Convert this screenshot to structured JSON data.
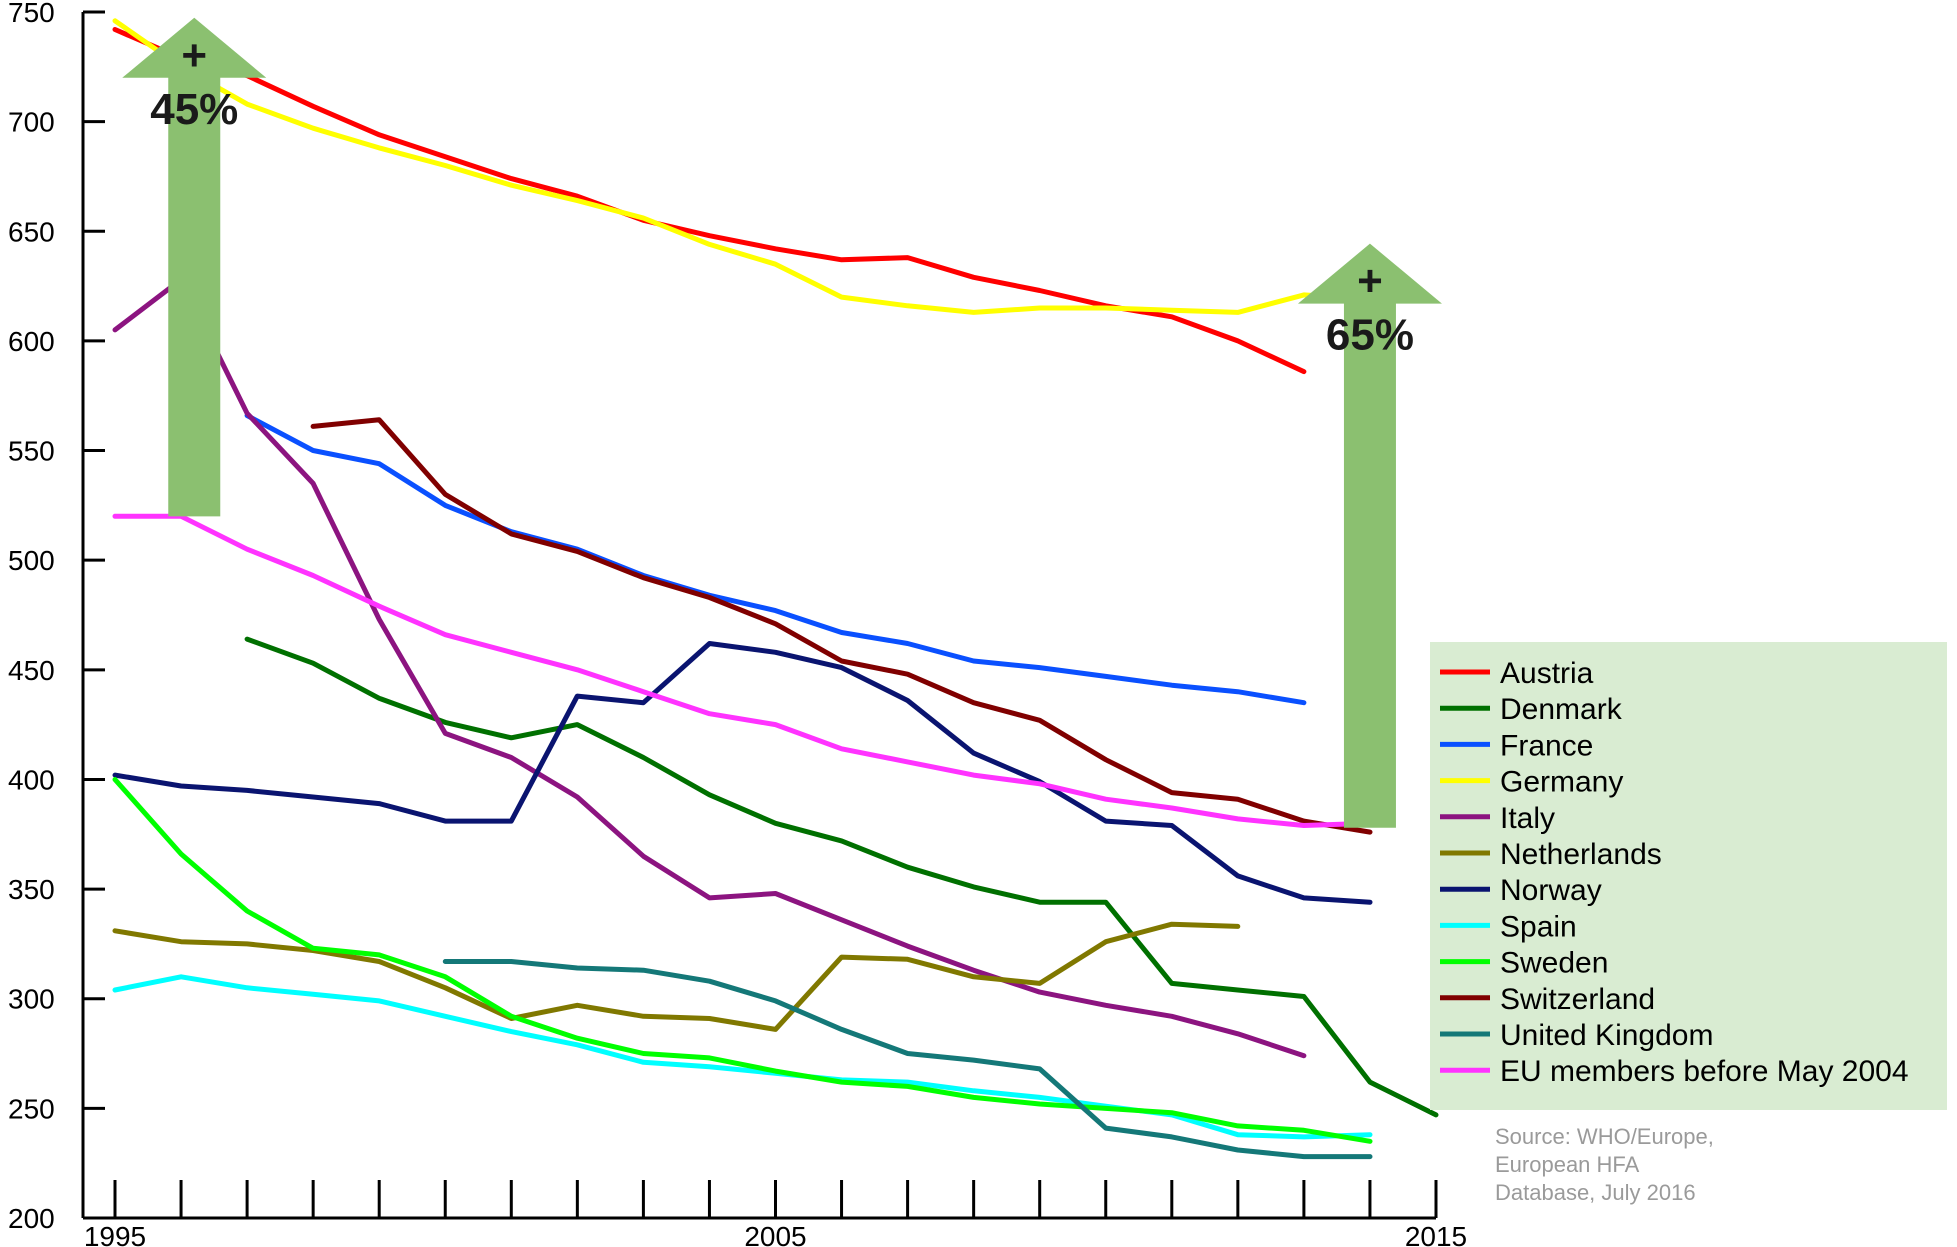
{
  "chart_data": {
    "type": "line",
    "title": "",
    "xlabel": "",
    "ylabel": "",
    "xlim": [
      1995,
      2015
    ],
    "ylim": [
      200,
      750
    ],
    "x_ticks": [
      "1995",
      "2005",
      "2015"
    ],
    "y_ticks": [
      "200",
      "250",
      "300",
      "350",
      "400",
      "450",
      "500",
      "550",
      "600",
      "650",
      "700",
      "750"
    ],
    "grid": false,
    "legend_position": "right",
    "series": [
      {
        "name": "Austria",
        "color": "#ff0000",
        "points": [
          [
            1995,
            742
          ],
          [
            1996,
            729
          ],
          [
            1997,
            721
          ],
          [
            1998,
            707
          ],
          [
            1999,
            694
          ],
          [
            2000,
            684
          ],
          [
            2001,
            674
          ],
          [
            2002,
            666
          ],
          [
            2003,
            655
          ],
          [
            2004,
            648
          ],
          [
            2005,
            642
          ],
          [
            2006,
            637
          ],
          [
            2007,
            638
          ],
          [
            2008,
            629
          ],
          [
            2009,
            623
          ],
          [
            2010,
            616
          ],
          [
            2011,
            611
          ],
          [
            2012,
            600
          ],
          [
            2013,
            586
          ]
        ]
      },
      {
        "name": "Denmark",
        "color": "#007000",
        "points": [
          [
            1997,
            464
          ],
          [
            1998,
            453
          ],
          [
            1999,
            437
          ],
          [
            2000,
            426
          ],
          [
            2001,
            419
          ],
          [
            2002,
            425
          ],
          [
            2003,
            410
          ],
          [
            2004,
            393
          ],
          [
            2005,
            380
          ],
          [
            2006,
            372
          ],
          [
            2007,
            360
          ],
          [
            2008,
            351
          ],
          [
            2009,
            344
          ],
          [
            2010,
            344
          ],
          [
            2011,
            307
          ],
          [
            2012,
            304
          ],
          [
            2013,
            301
          ],
          [
            2014,
            262
          ],
          [
            2015,
            247
          ]
        ]
      },
      {
        "name": "France",
        "color": "#0a50ff",
        "points": [
          [
            1997,
            566
          ],
          [
            1998,
            550
          ],
          [
            1999,
            544
          ],
          [
            2000,
            525
          ],
          [
            2001,
            513
          ],
          [
            2002,
            505
          ],
          [
            2003,
            493
          ],
          [
            2004,
            484
          ],
          [
            2005,
            477
          ],
          [
            2006,
            467
          ],
          [
            2007,
            462
          ],
          [
            2008,
            454
          ],
          [
            2009,
            451
          ],
          [
            2010,
            447
          ],
          [
            2011,
            443
          ],
          [
            2012,
            440
          ],
          [
            2013,
            435
          ]
        ]
      },
      {
        "name": "Germany",
        "color": "#ffff00",
        "points": [
          [
            1995,
            746
          ],
          [
            1996,
            725
          ],
          [
            1997,
            708
          ],
          [
            1998,
            697
          ],
          [
            1999,
            688
          ],
          [
            2000,
            680
          ],
          [
            2001,
            671
          ],
          [
            2002,
            664
          ],
          [
            2003,
            656
          ],
          [
            2004,
            644
          ],
          [
            2005,
            635
          ],
          [
            2006,
            620
          ],
          [
            2007,
            616
          ],
          [
            2008,
            613
          ],
          [
            2009,
            615
          ],
          [
            2010,
            615
          ],
          [
            2011,
            614
          ],
          [
            2012,
            613
          ],
          [
            2013,
            621
          ],
          [
            2014,
            619
          ]
        ]
      },
      {
        "name": "Italy",
        "color": "#8c1480",
        "points": [
          [
            1995,
            605
          ],
          [
            1996,
            628
          ],
          [
            1997,
            567
          ],
          [
            1998,
            535
          ],
          [
            1999,
            473
          ],
          [
            2000,
            421
          ],
          [
            2001,
            410
          ],
          [
            2002,
            392
          ],
          [
            2003,
            365
          ],
          [
            2004,
            346
          ],
          [
            2005,
            348
          ],
          [
            2006,
            336
          ],
          [
            2007,
            324
          ],
          [
            2008,
            313
          ],
          [
            2009,
            303
          ],
          [
            2010,
            297
          ],
          [
            2011,
            292
          ],
          [
            2012,
            284
          ],
          [
            2013,
            274
          ]
        ]
      },
      {
        "name": "Netherlands",
        "color": "#807800",
        "points": [
          [
            1995,
            331
          ],
          [
            1996,
            326
          ],
          [
            1997,
            325
          ],
          [
            1998,
            322
          ],
          [
            1999,
            317
          ],
          [
            2000,
            305
          ],
          [
            2001,
            291
          ],
          [
            2002,
            297
          ],
          [
            2003,
            292
          ],
          [
            2004,
            291
          ],
          [
            2005,
            286
          ],
          [
            2006,
            319
          ],
          [
            2007,
            318
          ],
          [
            2008,
            310
          ],
          [
            2009,
            307
          ],
          [
            2010,
            326
          ],
          [
            2011,
            334
          ],
          [
            2012,
            333
          ]
        ]
      },
      {
        "name": "Norway",
        "color": "#0a1470",
        "points": [
          [
            1995,
            402
          ],
          [
            1996,
            397
          ],
          [
            1997,
            395
          ],
          [
            1998,
            392
          ],
          [
            1999,
            389
          ],
          [
            2000,
            381
          ],
          [
            2001,
            381
          ],
          [
            2002,
            438
          ],
          [
            2003,
            435
          ],
          [
            2004,
            462
          ],
          [
            2005,
            458
          ],
          [
            2006,
            451
          ],
          [
            2007,
            436
          ],
          [
            2008,
            412
          ],
          [
            2009,
            399
          ],
          [
            2010,
            381
          ],
          [
            2011,
            379
          ],
          [
            2012,
            356
          ],
          [
            2013,
            346
          ],
          [
            2014,
            344
          ]
        ]
      },
      {
        "name": "Spain",
        "color": "#00ffff",
        "points": [
          [
            1995,
            304
          ],
          [
            1996,
            310
          ],
          [
            1997,
            305
          ],
          [
            1998,
            302
          ],
          [
            1999,
            299
          ],
          [
            2000,
            292
          ],
          [
            2001,
            285
          ],
          [
            2002,
            279
          ],
          [
            2003,
            271
          ],
          [
            2004,
            269
          ],
          [
            2005,
            266
          ],
          [
            2006,
            263
          ],
          [
            2007,
            262
          ],
          [
            2008,
            258
          ],
          [
            2009,
            255
          ],
          [
            2010,
            251
          ],
          [
            2011,
            247
          ],
          [
            2012,
            238
          ],
          [
            2013,
            237
          ],
          [
            2014,
            238
          ]
        ]
      },
      {
        "name": "Sweden",
        "color": "#00ff00",
        "points": [
          [
            1995,
            400
          ],
          [
            1996,
            366
          ],
          [
            1997,
            340
          ],
          [
            1998,
            323
          ],
          [
            1999,
            320
          ],
          [
            2000,
            310
          ],
          [
            2001,
            292
          ],
          [
            2002,
            282
          ],
          [
            2003,
            275
          ],
          [
            2004,
            273
          ],
          [
            2005,
            267
          ],
          [
            2006,
            262
          ],
          [
            2007,
            260
          ],
          [
            2008,
            255
          ],
          [
            2009,
            252
          ],
          [
            2010,
            250
          ],
          [
            2011,
            248
          ],
          [
            2012,
            242
          ],
          [
            2013,
            240
          ],
          [
            2014,
            235
          ]
        ]
      },
      {
        "name": "Switzerland",
        "color": "#800000",
        "points": [
          [
            1998,
            561
          ],
          [
            1999,
            564
          ],
          [
            2000,
            530
          ],
          [
            2001,
            512
          ],
          [
            2002,
            504
          ],
          [
            2003,
            492
          ],
          [
            2004,
            483
          ],
          [
            2005,
            471
          ],
          [
            2006,
            454
          ],
          [
            2007,
            448
          ],
          [
            2008,
            435
          ],
          [
            2009,
            427
          ],
          [
            2010,
            409
          ],
          [
            2011,
            394
          ],
          [
            2012,
            391
          ],
          [
            2013,
            381
          ],
          [
            2014,
            376
          ]
        ]
      },
      {
        "name": "United Kingdom",
        "color": "#147878",
        "points": [
          [
            2000,
            317
          ],
          [
            2001,
            317
          ],
          [
            2002,
            314
          ],
          [
            2003,
            313
          ],
          [
            2004,
            308
          ],
          [
            2005,
            299
          ],
          [
            2006,
            286
          ],
          [
            2007,
            275
          ],
          [
            2008,
            272
          ],
          [
            2009,
            268
          ],
          [
            2010,
            241
          ],
          [
            2011,
            237
          ],
          [
            2012,
            231
          ],
          [
            2013,
            228
          ],
          [
            2014,
            228
          ]
        ]
      },
      {
        "name": "EU members before May 2004",
        "color": "#ff33ff",
        "points": [
          [
            1995,
            520
          ],
          [
            1996,
            520
          ],
          [
            1997,
            505
          ],
          [
            1998,
            493
          ],
          [
            1999,
            479
          ],
          [
            2000,
            466
          ],
          [
            2001,
            458
          ],
          [
            2002,
            450
          ],
          [
            2003,
            440
          ],
          [
            2004,
            430
          ],
          [
            2005,
            425
          ],
          [
            2006,
            414
          ],
          [
            2007,
            408
          ],
          [
            2008,
            402
          ],
          [
            2009,
            398
          ],
          [
            2010,
            391
          ],
          [
            2011,
            387
          ],
          [
            2012,
            382
          ],
          [
            2013,
            379
          ],
          [
            2014,
            380
          ]
        ]
      }
    ],
    "annotations": [
      {
        "text_plus": "+",
        "text_pct": "45%",
        "x": 1996.2,
        "y_from": 520,
        "y_to": 720,
        "color": "#8bc070"
      },
      {
        "text_plus": "+",
        "text_pct": "65%",
        "x": 2014.0,
        "y_from": 378,
        "y_to": 617,
        "color": "#8bc070"
      }
    ],
    "source": [
      "Source: WHO/Europe,",
      "European HFA",
      "Database, July 2016"
    ],
    "legend_bg": "#d9ecd2"
  }
}
